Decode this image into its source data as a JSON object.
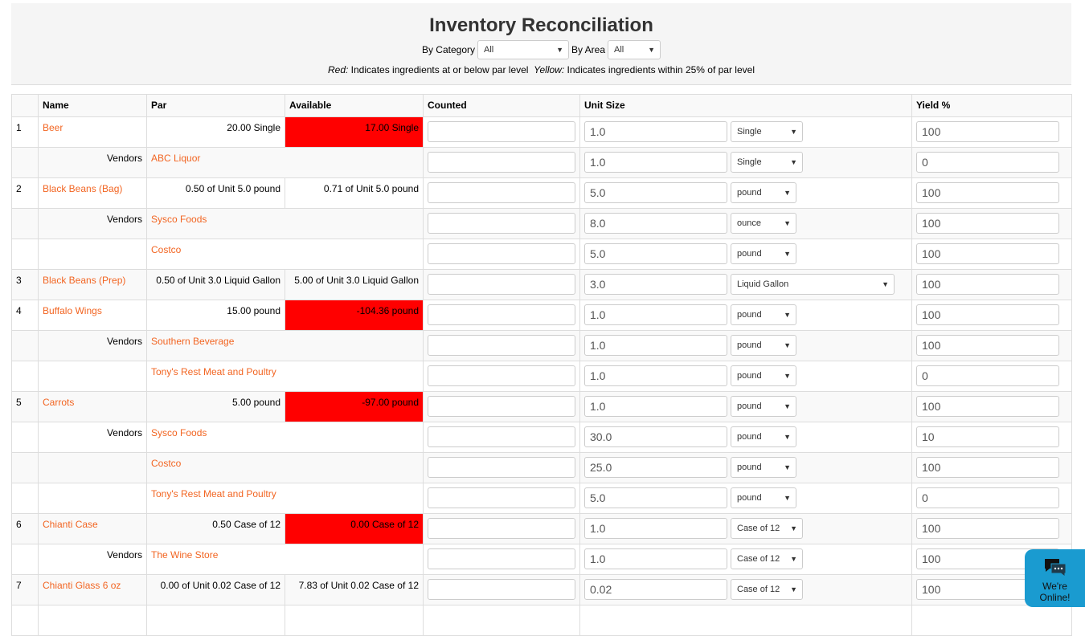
{
  "title": "Inventory Reconciliation",
  "filters": {
    "category_label": "By Category",
    "category_value": "All",
    "area_label": "By Area",
    "area_value": "All"
  },
  "legend": {
    "red_label": "Red:",
    "red_text": " Indicates ingredients at or below par level",
    "yellow_label": "Yellow:",
    "yellow_text": " Indicates ingredients within 25% of par level"
  },
  "columns": [
    "",
    "Name",
    "Par",
    "Available",
    "Counted",
    "Unit Size",
    "Yield %"
  ],
  "rows": [
    {
      "num": "1",
      "name": "Beer",
      "par": "20.00 Single",
      "available": "17.00 Single",
      "red": true,
      "unit": "1.0",
      "unit_select": "Single",
      "sw": 90,
      "yield": "100"
    },
    {
      "label": "Vendors",
      "name": "ABC Liquor",
      "unit": "1.0",
      "unit_select": "Single",
      "sw": 90,
      "yield": "0"
    },
    {
      "num": "2",
      "name": "Black Beans (Bag)",
      "par": "0.50 of Unit 5.0 pound",
      "available": "0.71 of Unit 5.0 pound",
      "unit": "5.0",
      "unit_select": "pound",
      "sw": 82,
      "yield": "100"
    },
    {
      "label": "Vendors",
      "name": "Sysco Foods",
      "unit": "8.0",
      "unit_select": "ounce",
      "sw": 82,
      "yield": "100"
    },
    {
      "name": "Costco",
      "unit": "5.0",
      "unit_select": "pound",
      "sw": 82,
      "yield": "100"
    },
    {
      "num": "3",
      "name": "Black Beans (Prep)",
      "par": "0.50 of Unit 3.0 Liquid Gallon",
      "available": "5.00 of Unit 3.0 Liquid Gallon",
      "unit": "3.0",
      "unit_select": "Liquid Gallon",
      "sw": 204,
      "yield": "100"
    },
    {
      "num": "4",
      "name": "Buffalo Wings",
      "par": "15.00 pound",
      "available": "-104.36 pound",
      "red": true,
      "unit": "1.0",
      "unit_select": "pound",
      "sw": 82,
      "yield": "100"
    },
    {
      "label": "Vendors",
      "name": "Southern Beverage",
      "unit": "1.0",
      "unit_select": "pound",
      "sw": 82,
      "yield": "100"
    },
    {
      "name": "Tony's Rest Meat and Poultry",
      "unit": "1.0",
      "unit_select": "pound",
      "sw": 82,
      "yield": "0"
    },
    {
      "num": "5",
      "name": "Carrots",
      "par": "5.00 pound",
      "available": "-97.00 pound",
      "red": true,
      "unit": "1.0",
      "unit_select": "pound",
      "sw": 82,
      "yield": "100"
    },
    {
      "label": "Vendors",
      "name": "Sysco Foods",
      "unit": "30.0",
      "unit_select": "pound",
      "sw": 82,
      "yield": "10"
    },
    {
      "name": "Costco",
      "unit": "25.0",
      "unit_select": "pound",
      "sw": 82,
      "yield": "100"
    },
    {
      "name": "Tony's Rest Meat and Poultry",
      "unit": "5.0",
      "unit_select": "pound",
      "sw": 82,
      "yield": "0"
    },
    {
      "num": "6",
      "name": "Chianti Case",
      "par": "0.50 Case of 12",
      "available": "0.00 Case of 12",
      "red": true,
      "unit": "1.0",
      "unit_select": "Case of 12",
      "sw": 90,
      "yield": "100"
    },
    {
      "label": "Vendors",
      "name": "The Wine Store",
      "unit": "1.0",
      "unit_select": "Case of 12",
      "sw": 90,
      "yield": "100"
    },
    {
      "num": "7",
      "name": "Chianti Glass 6 oz",
      "par": "0.00 of Unit 0.02 Case of 12",
      "available": "7.83 of Unit 0.02 Case of 12",
      "unit": "0.02",
      "unit_select": "Case of 12",
      "sw": 90,
      "yield": "100"
    }
  ],
  "chat": {
    "line1": "We're",
    "line2": "Online!",
    "color": "#1a9bd0"
  },
  "colors": {
    "link": "#f26522",
    "red": "#ff0000"
  }
}
